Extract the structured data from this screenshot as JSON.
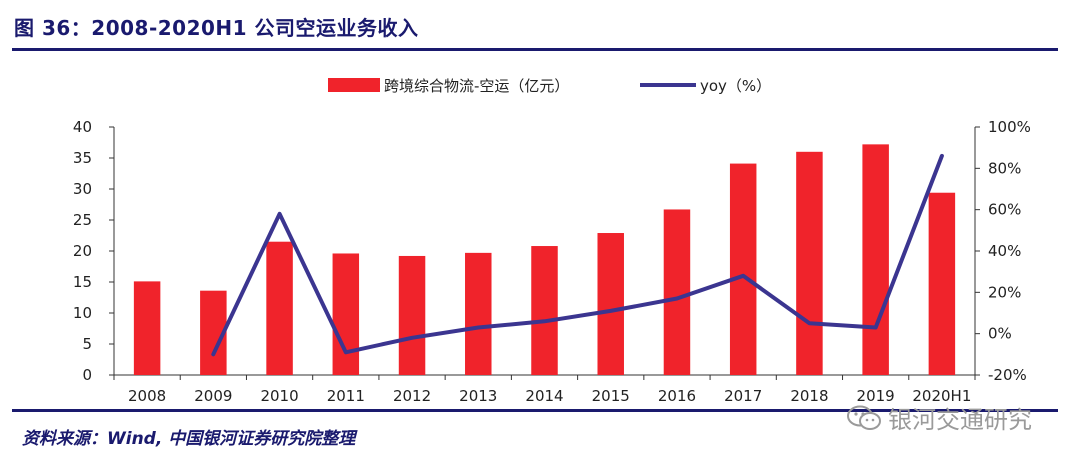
{
  "title": "图 36：2008-2020H1 公司空运业务收入",
  "source": "资料来源：Wind, 中国银河证券研究院整理",
  "watermark": {
    "text": "银河交通研究",
    "icon": "wechat-icon"
  },
  "colors": {
    "bar": "#f0232b",
    "line": "#3b3590",
    "text": "#1a1a6e"
  },
  "chart_data": {
    "type": "bar",
    "categories": [
      "2008",
      "2009",
      "2010",
      "2011",
      "2012",
      "2013",
      "2014",
      "2015",
      "2016",
      "2017",
      "2018",
      "2019",
      "2020H1"
    ],
    "series": [
      {
        "name": "跨境综合物流-空运（亿元）",
        "type": "bar",
        "axis": "left",
        "values": [
          15.1,
          13.6,
          21.5,
          19.6,
          19.2,
          19.7,
          20.8,
          22.9,
          26.7,
          34.1,
          36.0,
          37.2,
          29.4
        ]
      },
      {
        "name": "yoy（%）",
        "type": "line",
        "axis": "right",
        "values": [
          null,
          -10,
          58,
          -9,
          -2,
          3,
          6,
          11,
          17,
          28,
          5,
          3,
          86
        ]
      }
    ],
    "y_left": {
      "ylim": [
        0,
        40
      ],
      "ticks": [
        "0",
        "5",
        "10",
        "15",
        "20",
        "25",
        "30",
        "35",
        "40"
      ]
    },
    "y_right": {
      "ylim": [
        -20,
        100
      ],
      "ticks": [
        "-20%",
        "0%",
        "20%",
        "40%",
        "60%",
        "80%",
        "100%"
      ]
    },
    "legend": "top-center",
    "grid": false
  }
}
